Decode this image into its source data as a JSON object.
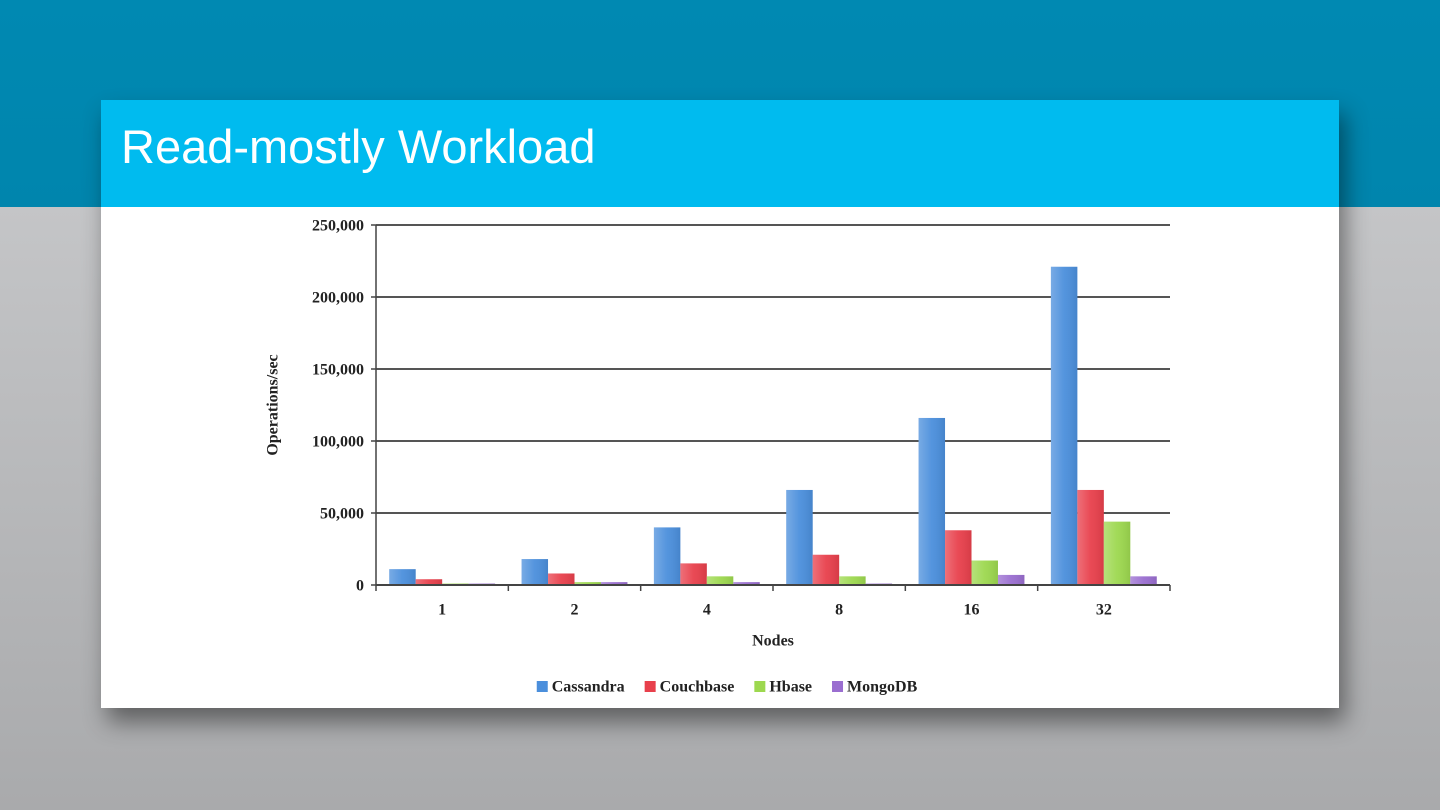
{
  "chart_data": {
    "type": "bar",
    "title": "Read-mostly Workload",
    "x_label": "Nodes",
    "y_label": "Operations/sec",
    "categories": [
      "1",
      "2",
      "4",
      "8",
      "16",
      "32"
    ],
    "series": [
      {
        "name": "Cassandra",
        "color": "#4b8fdc",
        "values": [
          11000,
          18000,
          40000,
          66000,
          116000,
          221000
        ]
      },
      {
        "name": "Couchbase",
        "color": "#e8404c",
        "values": [
          4000,
          8000,
          15000,
          21000,
          38000,
          66000
        ]
      },
      {
        "name": "Hbase",
        "color": "#9dd84f",
        "values": [
          1000,
          2000,
          6000,
          6000,
          17000,
          44000
        ]
      },
      {
        "name": "MongoDB",
        "color": "#9a6ed0",
        "values": [
          1000,
          2000,
          2000,
          1000,
          7000,
          6000
        ]
      }
    ],
    "ylim": [
      0,
      250000
    ],
    "yticks": [
      0,
      {
        "value": 50000,
        "label": "50,000"
      },
      {
        "value": 100000,
        "label": "100,000"
      },
      {
        "value": 150000,
        "label": "150,000"
      },
      {
        "value": 200000,
        "label": "200,000"
      },
      {
        "value": 250000,
        "label": "250,000"
      }
    ],
    "grid": true
  }
}
